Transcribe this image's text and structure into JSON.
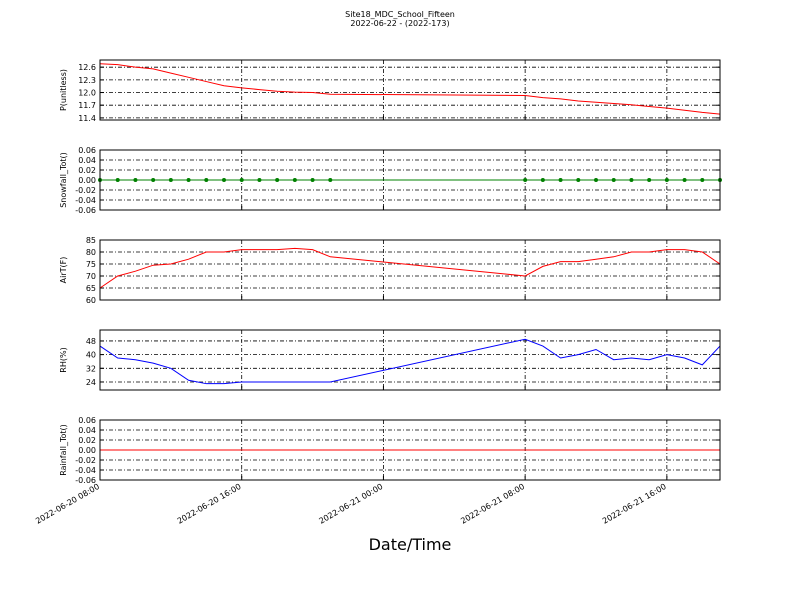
{
  "chart_data": [
    {
      "type": "line",
      "title": "Site18_MDC_School_Fifteen",
      "subtitle": "2022-06-22 - (2022-173)",
      "ylabel": "P(unitless)",
      "color": "#ff0000",
      "markers": false,
      "grid": true,
      "x": [
        "2022-06-20 08:00",
        "2022-06-20 09:00",
        "2022-06-20 10:00",
        "2022-06-20 11:00",
        "2022-06-20 12:00",
        "2022-06-20 13:00",
        "2022-06-20 14:00",
        "2022-06-20 15:00",
        "2022-06-20 16:00",
        "2022-06-20 17:00",
        "2022-06-20 18:00",
        "2022-06-20 19:00",
        "2022-06-20 20:00",
        "2022-06-20 21:00",
        "2022-06-21 08:00",
        "2022-06-21 09:00",
        "2022-06-21 10:00",
        "2022-06-21 11:00",
        "2022-06-21 12:00",
        "2022-06-21 13:00",
        "2022-06-21 14:00",
        "2022-06-21 15:00",
        "2022-06-21 16:00",
        "2022-06-21 17:00",
        "2022-06-21 18:00",
        "2022-06-21 19:00"
      ],
      "values": [
        12.68,
        12.66,
        12.6,
        12.56,
        12.46,
        12.36,
        12.26,
        12.16,
        12.11,
        12.07,
        12.03,
        12.01,
        12.0,
        11.96,
        11.93,
        11.88,
        11.85,
        11.8,
        11.77,
        11.74,
        11.71,
        11.67,
        11.63,
        11.58,
        11.53,
        11.49
      ],
      "xlim": [
        "2022-06-20 08:00",
        "2022-06-21 19:00"
      ],
      "xticks": [
        "2022-06-20 08:00",
        "2022-06-20 16:00",
        "2022-06-21 00:00",
        "2022-06-21 08:00",
        "2022-06-21 16:00"
      ],
      "ylim": [
        11.35,
        12.77
      ],
      "yticks": [
        11.4,
        11.7,
        {
          "value": 12,
          "label": "12.0"
        },
        12.3,
        12.6
      ]
    },
    {
      "type": "line",
      "ylabel": "Snowfall_Tot()",
      "color": "#008000",
      "markers": true,
      "grid": true,
      "x": [
        "2022-06-20 08:00",
        "2022-06-20 09:00",
        "2022-06-20 10:00",
        "2022-06-20 11:00",
        "2022-06-20 12:00",
        "2022-06-20 13:00",
        "2022-06-20 14:00",
        "2022-06-20 15:00",
        "2022-06-20 16:00",
        "2022-06-20 17:00",
        "2022-06-20 18:00",
        "2022-06-20 19:00",
        "2022-06-20 20:00",
        "2022-06-20 21:00",
        "2022-06-21 08:00",
        "2022-06-21 09:00",
        "2022-06-21 10:00",
        "2022-06-21 11:00",
        "2022-06-21 12:00",
        "2022-06-21 13:00",
        "2022-06-21 14:00",
        "2022-06-21 15:00",
        "2022-06-21 16:00",
        "2022-06-21 17:00",
        "2022-06-21 18:00",
        "2022-06-21 19:00"
      ],
      "values": [
        0,
        0,
        0,
        0,
        0,
        0,
        0,
        0,
        0,
        0,
        0,
        0,
        0,
        0,
        0,
        0,
        0,
        0,
        0,
        0,
        0,
        0,
        0,
        0,
        0,
        0
      ],
      "xlim": [
        "2022-06-20 08:00",
        "2022-06-21 19:00"
      ],
      "xticks": [
        "2022-06-20 08:00",
        "2022-06-20 16:00",
        "2022-06-21 00:00",
        "2022-06-21 08:00",
        "2022-06-21 16:00"
      ],
      "ylim": [
        -0.06,
        0.06
      ],
      "yticks": [
        -0.06,
        -0.04,
        -0.02,
        {
          "value": 0,
          "label": "0.00"
        },
        0.02,
        0.04,
        0.06
      ]
    },
    {
      "type": "line",
      "ylabel": "AirT(F)",
      "color": "#ff0000",
      "markers": false,
      "grid": true,
      "x": [
        "2022-06-20 08:00",
        "2022-06-20 09:00",
        "2022-06-20 10:00",
        "2022-06-20 11:00",
        "2022-06-20 12:00",
        "2022-06-20 13:00",
        "2022-06-20 14:00",
        "2022-06-20 15:00",
        "2022-06-20 16:00",
        "2022-06-20 17:00",
        "2022-06-20 18:00",
        "2022-06-20 19:00",
        "2022-06-20 20:00",
        "2022-06-20 21:00",
        "2022-06-21 08:00",
        "2022-06-21 09:00",
        "2022-06-21 10:00",
        "2022-06-21 11:00",
        "2022-06-21 12:00",
        "2022-06-21 13:00",
        "2022-06-21 14:00",
        "2022-06-21 15:00",
        "2022-06-21 16:00",
        "2022-06-21 17:00",
        "2022-06-21 18:00",
        "2022-06-21 19:00"
      ],
      "values": [
        65,
        70,
        72,
        74.5,
        75,
        77,
        80,
        80,
        81,
        81,
        81,
        81.5,
        81,
        78,
        70,
        74,
        76,
        76,
        77,
        78,
        80,
        80,
        81,
        81,
        80,
        75
      ],
      "xlim": [
        "2022-06-20 08:00",
        "2022-06-21 19:00"
      ],
      "xticks": [
        "2022-06-20 08:00",
        "2022-06-20 16:00",
        "2022-06-21 00:00",
        "2022-06-21 08:00",
        "2022-06-21 16:00"
      ],
      "ylim": [
        60,
        85
      ],
      "yticks": [
        60,
        65,
        70,
        75,
        80,
        85
      ]
    },
    {
      "type": "line",
      "ylabel": "RH(%)",
      "color": "#0000ff",
      "markers": false,
      "grid": true,
      "x": [
        "2022-06-20 08:00",
        "2022-06-20 09:00",
        "2022-06-20 10:00",
        "2022-06-20 11:00",
        "2022-06-20 12:00",
        "2022-06-20 13:00",
        "2022-06-20 14:00",
        "2022-06-20 15:00",
        "2022-06-20 16:00",
        "2022-06-20 17:00",
        "2022-06-20 18:00",
        "2022-06-20 19:00",
        "2022-06-20 20:00",
        "2022-06-20 21:00",
        "2022-06-21 08:00",
        "2022-06-21 09:00",
        "2022-06-21 10:00",
        "2022-06-21 11:00",
        "2022-06-21 12:00",
        "2022-06-21 13:00",
        "2022-06-21 14:00",
        "2022-06-21 15:00",
        "2022-06-21 16:00",
        "2022-06-21 17:00",
        "2022-06-21 18:00",
        "2022-06-21 19:00"
      ],
      "values": [
        45,
        38,
        37,
        35,
        32,
        25,
        23,
        23,
        24,
        24,
        24,
        24,
        24,
        24,
        49,
        45,
        38,
        40,
        43,
        37,
        38,
        37,
        40,
        38,
        34,
        45
      ],
      "xlim": [
        "2022-06-20 08:00",
        "2022-06-21 19:00"
      ],
      "xticks": [
        "2022-06-20 08:00",
        "2022-06-20 16:00",
        "2022-06-21 00:00",
        "2022-06-21 08:00",
        "2022-06-21 16:00"
      ],
      "ylim": [
        19.3,
        54.4
      ],
      "yticks": [
        24,
        32,
        40,
        48
      ]
    },
    {
      "type": "line",
      "ylabel": "Rainfall_Tot()",
      "xlabel": "Date/Time",
      "color": "#ff0000",
      "markers": false,
      "grid": true,
      "xticklabels": true,
      "x": [
        "2022-06-20 08:00",
        "2022-06-20 09:00",
        "2022-06-20 10:00",
        "2022-06-20 11:00",
        "2022-06-20 12:00",
        "2022-06-20 13:00",
        "2022-06-20 14:00",
        "2022-06-20 15:00",
        "2022-06-20 16:00",
        "2022-06-20 17:00",
        "2022-06-20 18:00",
        "2022-06-20 19:00",
        "2022-06-20 20:00",
        "2022-06-20 21:00",
        "2022-06-21 08:00",
        "2022-06-21 09:00",
        "2022-06-21 10:00",
        "2022-06-21 11:00",
        "2022-06-21 12:00",
        "2022-06-21 13:00",
        "2022-06-21 14:00",
        "2022-06-21 15:00",
        "2022-06-21 16:00",
        "2022-06-21 17:00",
        "2022-06-21 18:00",
        "2022-06-21 19:00"
      ],
      "values": [
        0,
        0,
        0,
        0,
        0,
        0,
        0,
        0,
        0,
        0,
        0,
        0,
        0,
        0,
        0,
        0,
        0,
        0,
        0,
        0,
        0,
        0,
        0,
        0,
        0,
        0
      ],
      "xlim": [
        "2022-06-20 08:00",
        "2022-06-21 19:00"
      ],
      "xticks": [
        "2022-06-20 08:00",
        "2022-06-20 16:00",
        "2022-06-21 00:00",
        "2022-06-21 08:00",
        "2022-06-21 16:00"
      ],
      "ylim": [
        -0.06,
        0.06
      ],
      "yticks": [
        -0.06,
        -0.04,
        -0.02,
        {
          "value": 0,
          "label": "0.00"
        },
        0.02,
        0.04,
        0.06
      ]
    }
  ]
}
